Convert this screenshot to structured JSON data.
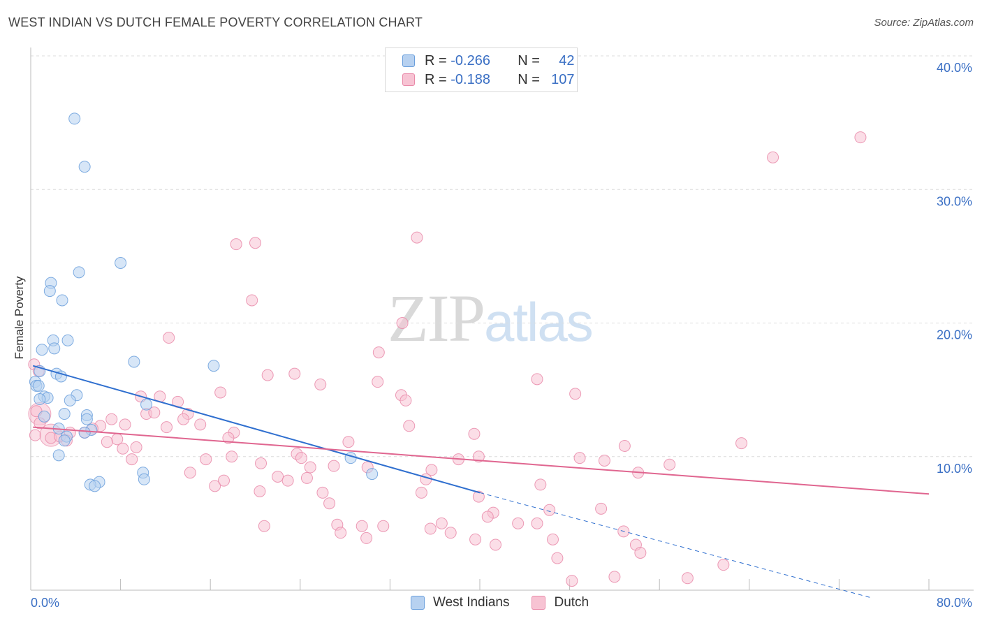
{
  "title": "WEST INDIAN VS DUTCH FEMALE POVERTY CORRELATION CHART",
  "source": "Source: ZipAtlas.com",
  "watermark": {
    "zip": "ZIP",
    "atlas": "atlas"
  },
  "colors": {
    "blue": "#6a9fdc",
    "blue_fill": "#b7d1f0",
    "blue_line": "#2f6fcf",
    "pink": "#e98aa9",
    "pink_fill": "#f7c3d3",
    "pink_line": "#e06690",
    "tick_text": "#3a6fc4"
  },
  "legend_top": {
    "rows": [
      {
        "r_label": "R =",
        "r_value": "-0.266",
        "n_label": "N =",
        "n_value": "42"
      },
      {
        "r_label": "R =",
        "r_value": "-0.188",
        "n_label": "N =",
        "n_value": "107"
      }
    ]
  },
  "legend_bottom": {
    "series": [
      "West Indians",
      "Dutch"
    ]
  },
  "chart_data": {
    "type": "scatter",
    "title": "WEST INDIAN VS DUTCH FEMALE POVERTY CORRELATION CHART",
    "xlabel": "",
    "ylabel": "Female Poverty",
    "xlim": [
      0,
      80
    ],
    "ylim": [
      0,
      40
    ],
    "x_tick_labels": [
      "0.0%",
      "80.0%"
    ],
    "y_tick_labels": [
      "10.0%",
      "20.0%",
      "30.0%",
      "40.0%"
    ],
    "y_ticks": [
      10,
      20,
      30,
      40
    ],
    "series": [
      {
        "name": "West Indians",
        "r": -0.266,
        "n": 42,
        "trend": {
          "x0": 0.2,
          "y0": 16.8,
          "x1": 40.0,
          "y1": 7.3,
          "dashed_to_x": 75.0,
          "dashed_to_y": -0.6
        },
        "points": [
          [
            3.9,
            35.3
          ],
          [
            4.8,
            31.7
          ],
          [
            8.0,
            24.5
          ],
          [
            4.3,
            23.8
          ],
          [
            1.8,
            23.0
          ],
          [
            1.7,
            22.4
          ],
          [
            2.8,
            21.7
          ],
          [
            2.0,
            18.7
          ],
          [
            1.0,
            18.0
          ],
          [
            2.1,
            18.1
          ],
          [
            3.3,
            18.7
          ],
          [
            9.2,
            17.1
          ],
          [
            16.3,
            16.8
          ],
          [
            0.8,
            16.4
          ],
          [
            2.3,
            16.2
          ],
          [
            2.7,
            16.0
          ],
          [
            0.4,
            15.6
          ],
          [
            0.5,
            15.3
          ],
          [
            0.7,
            15.3
          ],
          [
            4.1,
            14.6
          ],
          [
            1.2,
            14.5
          ],
          [
            1.5,
            14.4
          ],
          [
            0.8,
            14.3
          ],
          [
            3.5,
            14.2
          ],
          [
            10.3,
            13.9
          ],
          [
            3.0,
            13.2
          ],
          [
            5.0,
            13.1
          ],
          [
            1.2,
            13.0
          ],
          [
            5.0,
            12.8
          ],
          [
            2.5,
            12.1
          ],
          [
            5.4,
            12.0
          ],
          [
            4.8,
            11.8
          ],
          [
            3.2,
            11.5
          ],
          [
            3.0,
            11.2
          ],
          [
            2.5,
            10.1
          ],
          [
            28.5,
            9.9
          ],
          [
            10.0,
            8.8
          ],
          [
            30.4,
            8.7
          ],
          [
            6.1,
            8.1
          ],
          [
            5.3,
            7.9
          ],
          [
            5.7,
            7.8
          ],
          [
            10.1,
            8.3
          ]
        ]
      },
      {
        "name": "Dutch",
        "r": -0.188,
        "n": 107,
        "trend": {
          "x0": 0.2,
          "y0": 12.2,
          "x1": 80.0,
          "y1": 7.2
        },
        "points": [
          [
            73.9,
            33.9
          ],
          [
            66.1,
            32.4
          ],
          [
            34.4,
            26.4
          ],
          [
            18.3,
            25.9
          ],
          [
            19.7,
            21.7
          ],
          [
            33.1,
            20.0
          ],
          [
            12.3,
            18.9
          ],
          [
            31.0,
            17.8
          ],
          [
            0.3,
            16.9
          ],
          [
            0.7,
            16.4
          ],
          [
            21.1,
            16.1
          ],
          [
            23.5,
            16.2
          ],
          [
            45.1,
            15.8
          ],
          [
            30.9,
            15.6
          ],
          [
            25.8,
            15.4
          ],
          [
            16.9,
            14.8
          ],
          [
            33.0,
            14.6
          ],
          [
            48.5,
            14.7
          ],
          [
            9.8,
            14.5
          ],
          [
            11.5,
            14.5
          ],
          [
            33.4,
            14.2
          ],
          [
            13.1,
            14.1
          ],
          [
            0.5,
            13.4
          ],
          [
            10.3,
            13.2
          ],
          [
            11.0,
            13.3
          ],
          [
            14.0,
            13.2
          ],
          [
            13.6,
            12.8
          ],
          [
            7.2,
            12.8
          ],
          [
            0.8,
            12.5
          ],
          [
            8.4,
            12.4
          ],
          [
            6.2,
            12.3
          ],
          [
            15.1,
            12.4
          ],
          [
            12.1,
            12.2
          ],
          [
            33.7,
            12.3
          ],
          [
            5.5,
            12.1
          ],
          [
            18.1,
            11.8
          ],
          [
            3.5,
            11.8
          ],
          [
            4.8,
            11.8
          ],
          [
            0.4,
            11.6
          ],
          [
            1.8,
            11.4
          ],
          [
            2.6,
            11.5
          ],
          [
            3.2,
            11.2
          ],
          [
            7.7,
            11.3
          ],
          [
            17.6,
            11.4
          ],
          [
            39.5,
            11.7
          ],
          [
            6.8,
            11.1
          ],
          [
            28.3,
            11.1
          ],
          [
            63.3,
            11.0
          ],
          [
            52.9,
            10.8
          ],
          [
            9.4,
            10.7
          ],
          [
            8.2,
            10.6
          ],
          [
            17.9,
            10.0
          ],
          [
            23.7,
            10.2
          ],
          [
            39.9,
            10.0
          ],
          [
            48.9,
            9.9
          ],
          [
            15.6,
            9.8
          ],
          [
            9.0,
            9.8
          ],
          [
            24.1,
            9.9
          ],
          [
            51.1,
            9.7
          ],
          [
            38.1,
            9.8
          ],
          [
            20.5,
            9.5
          ],
          [
            27.0,
            9.3
          ],
          [
            56.9,
            9.4
          ],
          [
            24.9,
            9.2
          ],
          [
            30.0,
            9.2
          ],
          [
            35.7,
            9.0
          ],
          [
            54.1,
            8.8
          ],
          [
            14.2,
            8.8
          ],
          [
            22.0,
            8.5
          ],
          [
            24.6,
            8.4
          ],
          [
            35.2,
            8.3
          ],
          [
            22.9,
            8.2
          ],
          [
            17.2,
            8.2
          ],
          [
            16.4,
            7.8
          ],
          [
            45.4,
            7.9
          ],
          [
            20.4,
            7.4
          ],
          [
            26.0,
            7.3
          ],
          [
            34.8,
            7.3
          ],
          [
            39.9,
            7.0
          ],
          [
            26.6,
            6.5
          ],
          [
            46.2,
            6.0
          ],
          [
            50.8,
            6.1
          ],
          [
            41.2,
            5.8
          ],
          [
            40.7,
            5.5
          ],
          [
            43.4,
            5.0
          ],
          [
            45.1,
            5.0
          ],
          [
            36.6,
            5.0
          ],
          [
            27.3,
            4.9
          ],
          [
            29.5,
            4.8
          ],
          [
            31.4,
            4.8
          ],
          [
            20.8,
            4.8
          ],
          [
            35.6,
            4.6
          ],
          [
            37.4,
            4.3
          ],
          [
            27.6,
            4.3
          ],
          [
            52.8,
            4.4
          ],
          [
            29.9,
            3.9
          ],
          [
            39.6,
            3.8
          ],
          [
            46.5,
            3.8
          ],
          [
            41.4,
            3.4
          ],
          [
            53.9,
            3.4
          ],
          [
            54.3,
            2.8
          ],
          [
            46.9,
            2.4
          ],
          [
            61.7,
            1.9
          ],
          [
            52.0,
            1.0
          ],
          [
            58.5,
            0.9
          ],
          [
            48.2,
            0.7
          ],
          [
            20.0,
            26.0
          ]
        ]
      }
    ],
    "large_points": [
      {
        "series": "Dutch",
        "x": 0.8,
        "y": 13.2
      },
      {
        "series": "Dutch",
        "x": 1.8,
        "y": 11.6
      }
    ]
  }
}
